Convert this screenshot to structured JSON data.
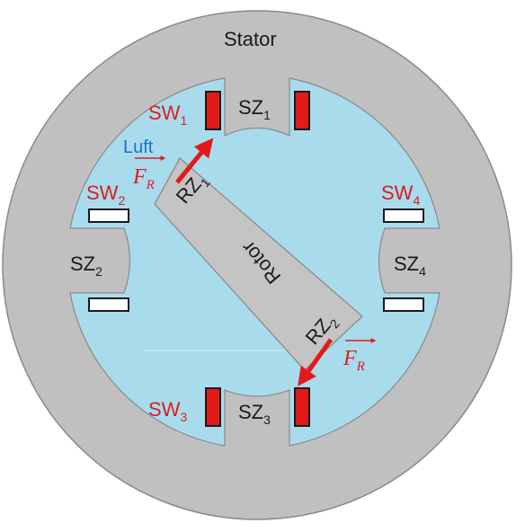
{
  "colors": {
    "stator": "#c0c0c0",
    "outline": "#8a8a8a",
    "air": "#a8dced",
    "rotor": "#c4c4c4",
    "winding_active": "#e21a1a",
    "winding_idle": "#ffffff",
    "force": "#e21a1a",
    "luft_text": "#1f6fc7",
    "sw_text": "#e21a1a"
  },
  "labels": {
    "stator": "Stator",
    "rotor": "Rotor",
    "luft": "Luft",
    "force": {
      "main": "F",
      "sub": "R"
    }
  },
  "stator_teeth": [
    {
      "id": "sz1",
      "main": "SZ",
      "sub": "1"
    },
    {
      "id": "sz2",
      "main": "SZ",
      "sub": "2"
    },
    {
      "id": "sz3",
      "main": "SZ",
      "sub": "3"
    },
    {
      "id": "sz4",
      "main": "SZ",
      "sub": "4"
    }
  ],
  "windings": [
    {
      "id": "sw1",
      "main": "SW",
      "sub": "1",
      "active": true
    },
    {
      "id": "sw2",
      "main": "SW",
      "sub": "2",
      "active": false
    },
    {
      "id": "sw3",
      "main": "SW",
      "sub": "3",
      "active": true
    },
    {
      "id": "sw4",
      "main": "SW",
      "sub": "4",
      "active": false
    }
  ],
  "rotor_teeth": [
    {
      "id": "rz1",
      "main": "RZ",
      "sub": "1"
    },
    {
      "id": "rz2",
      "main": "RZ",
      "sub": "2"
    }
  ]
}
